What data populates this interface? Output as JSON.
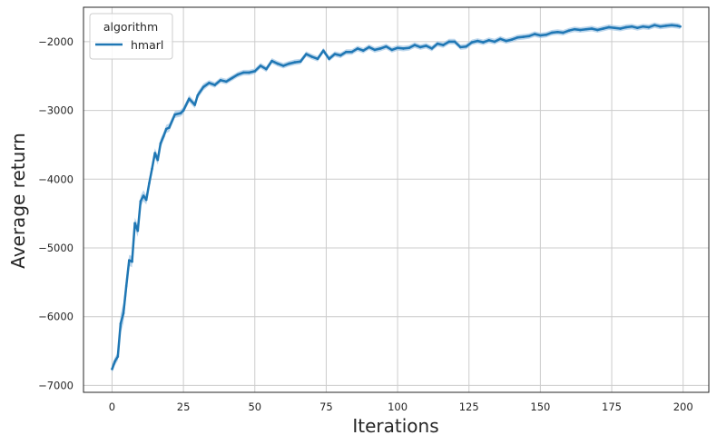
{
  "chart_data": {
    "type": "line",
    "xlabel": "Iterations",
    "ylabel": "Average return",
    "xlim": [
      -10,
      209
    ],
    "ylim": [
      -7100,
      -1500
    ],
    "xticks": [
      0,
      25,
      50,
      75,
      100,
      125,
      150,
      175,
      200
    ],
    "yticks": [
      -7000,
      -6000,
      -5000,
      -4000,
      -3000,
      -2000
    ],
    "xtick_labels": [
      "0",
      "25",
      "50",
      "75",
      "100",
      "125",
      "150",
      "175",
      "200"
    ],
    "ytick_labels": [
      "−7000",
      "−6000",
      "−5000",
      "−4000",
      "−3000",
      "−2000"
    ],
    "grid": true,
    "legend": {
      "title": "algorithm",
      "placement": "upper-left"
    },
    "series": [
      {
        "name": "hmarl",
        "color": "#1f77b4",
        "band_color": "#a6c8e6",
        "x": [
          0,
          1,
          2,
          3,
          4,
          5,
          6,
          7,
          8,
          9,
          10,
          11,
          12,
          13,
          14,
          15,
          16,
          17,
          18,
          19,
          20,
          22,
          24,
          25,
          27,
          29,
          30,
          32,
          34,
          36,
          38,
          40,
          42,
          44,
          46,
          48,
          50,
          52,
          54,
          56,
          58,
          60,
          62,
          64,
          66,
          68,
          70,
          72,
          74,
          76,
          78,
          80,
          82,
          84,
          86,
          88,
          90,
          92,
          94,
          96,
          98,
          100,
          102,
          104,
          106,
          108,
          110,
          112,
          114,
          116,
          118,
          120,
          122,
          124,
          126,
          128,
          130,
          132,
          134,
          136,
          138,
          140,
          142,
          144,
          146,
          148,
          150,
          152,
          154,
          156,
          158,
          160,
          162,
          164,
          166,
          168,
          170,
          172,
          174,
          176,
          178,
          180,
          182,
          184,
          186,
          188,
          190,
          192,
          194,
          196,
          198,
          199
        ],
        "values": [
          -6760,
          -6650,
          -6580,
          -6100,
          -5950,
          -5550,
          -5180,
          -5200,
          -4640,
          -4750,
          -4320,
          -4240,
          -4300,
          -4060,
          -3850,
          -3620,
          -3720,
          -3480,
          -3380,
          -3270,
          -3250,
          -3060,
          -3040,
          -3000,
          -2830,
          -2920,
          -2780,
          -2660,
          -2600,
          -2630,
          -2560,
          -2580,
          -2530,
          -2480,
          -2450,
          -2450,
          -2430,
          -2350,
          -2400,
          -2280,
          -2320,
          -2350,
          -2320,
          -2300,
          -2290,
          -2180,
          -2220,
          -2250,
          -2130,
          -2250,
          -2180,
          -2200,
          -2150,
          -2150,
          -2100,
          -2130,
          -2080,
          -2120,
          -2100,
          -2070,
          -2120,
          -2090,
          -2100,
          -2090,
          -2050,
          -2080,
          -2060,
          -2100,
          -2030,
          -2050,
          -2000,
          -2000,
          -2080,
          -2070,
          -2010,
          -1990,
          -2010,
          -1980,
          -2000,
          -1960,
          -1990,
          -1970,
          -1940,
          -1930,
          -1920,
          -1890,
          -1910,
          -1900,
          -1870,
          -1860,
          -1870,
          -1840,
          -1820,
          -1830,
          -1820,
          -1810,
          -1830,
          -1810,
          -1790,
          -1800,
          -1810,
          -1790,
          -1780,
          -1800,
          -1780,
          -1790,
          -1760,
          -1780,
          -1770,
          -1760,
          -1770,
          -1780
        ],
        "band_halfwidth": [
          60,
          60,
          60,
          140,
          150,
          150,
          80,
          80,
          80,
          90,
          80,
          80,
          70,
          70,
          70,
          70,
          70,
          70,
          60,
          60,
          60,
          50,
          50,
          50,
          50,
          50,
          50,
          50,
          40,
          40,
          40,
          40,
          40,
          40,
          40,
          40,
          40,
          40,
          40,
          40,
          40,
          40,
          40,
          40,
          40,
          40,
          40,
          40,
          40,
          40,
          40,
          40,
          40,
          40,
          40,
          40,
          40,
          40,
          40,
          40,
          40,
          40,
          40,
          40,
          40,
          40,
          40,
          40,
          40,
          40,
          40,
          40,
          40,
          40,
          40,
          40,
          40,
          40,
          40,
          40,
          40,
          40,
          40,
          40,
          40,
          40,
          40,
          40,
          40,
          40,
          40,
          40,
          40,
          40,
          40,
          40,
          40,
          40,
          40,
          40,
          40,
          40,
          40,
          40,
          40,
          40,
          40,
          40,
          40,
          40,
          40,
          40
        ]
      }
    ]
  }
}
